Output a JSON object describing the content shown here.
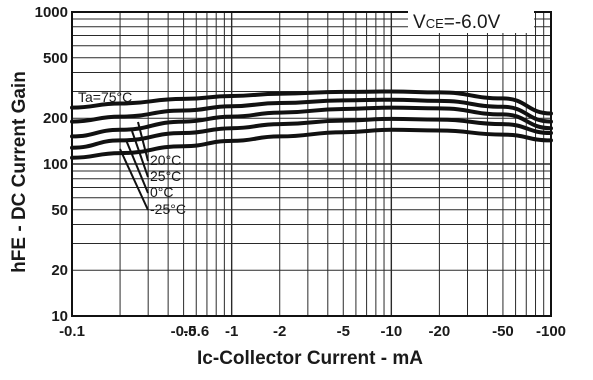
{
  "chart_data": {
    "type": "line",
    "x_scale": "log",
    "y_scale": "log",
    "x_sign": "negative",
    "xlim": [
      0.1,
      100
    ],
    "ylim": [
      10,
      1000
    ],
    "grid": true,
    "xlabel": "Ic-Collector Current - mA",
    "ylabel": "hFE - DC Current Gain",
    "condition": "VCE=-6.0V",
    "condition_main": "V",
    "condition_sub": "CE",
    "condition_rest": "=-6.0V",
    "x_ticks": [
      {
        "value": 0.1,
        "label": "-0.1"
      },
      {
        "value": 0.5,
        "label": "-0.5"
      },
      {
        "value": 0.6,
        "label": "-0.6"
      },
      {
        "value": 1,
        "label": "-1"
      },
      {
        "value": 2,
        "label": "-2"
      },
      {
        "value": 5,
        "label": "-5"
      },
      {
        "value": 10,
        "label": "-10"
      },
      {
        "value": 20,
        "label": "-20"
      },
      {
        "value": 50,
        "label": "-50"
      },
      {
        "value": 100,
        "label": "-100"
      }
    ],
    "y_ticks": [
      {
        "value": 1000,
        "label": "1000"
      },
      {
        "value": 500,
        "label": "500"
      },
      {
        "value": 200,
        "label": "200"
      },
      {
        "value": 100,
        "label": "100"
      },
      {
        "value": 50,
        "label": "50"
      },
      {
        "value": 20,
        "label": "20"
      },
      {
        "value": 10,
        "label": "10"
      }
    ],
    "series": [
      {
        "name": "Ta=75°C",
        "x": [
          0.1,
          0.2,
          0.5,
          1,
          2,
          5,
          10,
          20,
          50,
          100
        ],
        "y": [
          235,
          250,
          268,
          280,
          290,
          298,
          300,
          296,
          270,
          215
        ]
      },
      {
        "name": "20°C",
        "x": [
          0.1,
          0.2,
          0.5,
          1,
          2,
          5,
          10,
          20,
          50,
          100
        ],
        "y": [
          190,
          205,
          225,
          240,
          252,
          262,
          265,
          260,
          238,
          190
        ]
      },
      {
        "name": "25°C",
        "x": [
          0.1,
          0.2,
          0.5,
          1,
          2,
          5,
          10,
          20,
          50,
          100
        ],
        "y": [
          152,
          168,
          190,
          205,
          218,
          230,
          235,
          232,
          212,
          172
        ]
      },
      {
        "name": "0°C",
        "x": [
          0.1,
          0.2,
          0.5,
          1,
          2,
          5,
          10,
          20,
          50,
          100
        ],
        "y": [
          128,
          143,
          160,
          172,
          183,
          193,
          198,
          196,
          183,
          160
        ]
      },
      {
        "name": "-25°C",
        "x": [
          0.1,
          0.2,
          0.5,
          1,
          2,
          5,
          10,
          20,
          50,
          100
        ],
        "y": [
          110,
          118,
          131,
          142,
          152,
          162,
          168,
          166,
          156,
          143
        ]
      }
    ],
    "annotations": [
      {
        "text": "Ta=75°C"
      },
      {
        "text": "20°C"
      },
      {
        "text": "25°C"
      },
      {
        "text": "0°C"
      },
      {
        "text": "-25°C"
      }
    ]
  }
}
